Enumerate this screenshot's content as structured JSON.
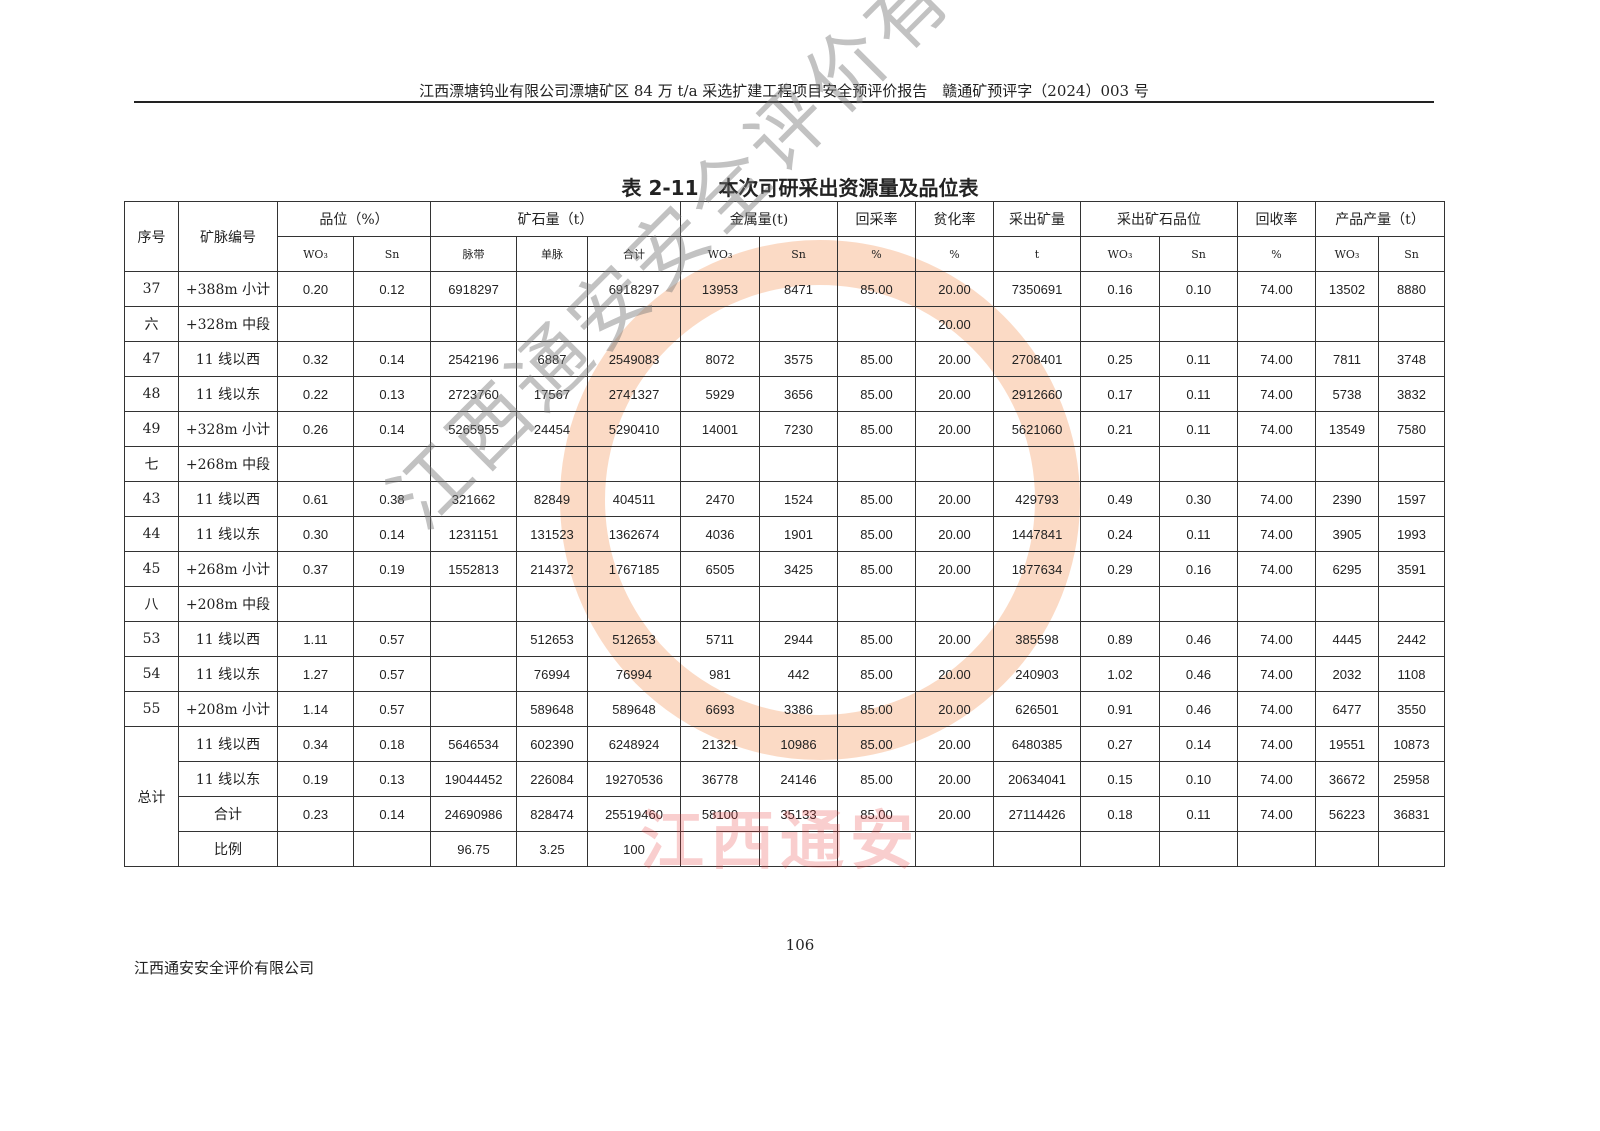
{
  "header": "江西漂塘钨业有限公司漂塘矿区 84 万 t/a 采选扩建工程项目安全预评价报告　赣通矿预评字（2024）003 号",
  "title": "表 2-11　本次可研采出资源量及品位表",
  "table": {
    "head1": [
      "序号",
      "矿脉编号",
      "品位（%）",
      "矿石量（t）",
      "金属量(t)",
      "回采率",
      "贫化率",
      "采出矿量",
      "采出矿石品位",
      "回收率",
      "产品产量（t）"
    ],
    "head2": [
      "WO₃",
      "Sn",
      "脉带",
      "单脉",
      "合计",
      "WO₃",
      "Sn",
      "%",
      "%",
      "t",
      "WO₃",
      "Sn",
      "%",
      "WO₃",
      "Sn"
    ],
    "rows": [
      [
        "37",
        "+388m 小计",
        "0.20",
        "0.12",
        "6918297",
        "",
        "6918297",
        "13953",
        "8471",
        "85.00",
        "20.00",
        "7350691",
        "0.16",
        "0.10",
        "74.00",
        "13502",
        "8880"
      ],
      [
        "六",
        "+328m 中段",
        "",
        "",
        "",
        "",
        "",
        "",
        "",
        "",
        "20.00",
        "",
        "",
        "",
        "",
        "",
        ""
      ],
      [
        "47",
        "11 线以西",
        "0.32",
        "0.14",
        "2542196",
        "6887",
        "2549083",
        "8072",
        "3575",
        "85.00",
        "20.00",
        "2708401",
        "0.25",
        "0.11",
        "74.00",
        "7811",
        "3748"
      ],
      [
        "48",
        "11 线以东",
        "0.22",
        "0.13",
        "2723760",
        "17567",
        "2741327",
        "5929",
        "3656",
        "85.00",
        "20.00",
        "2912660",
        "0.17",
        "0.11",
        "74.00",
        "5738",
        "3832"
      ],
      [
        "49",
        "+328m 小计",
        "0.26",
        "0.14",
        "5265955",
        "24454",
        "5290410",
        "14001",
        "7230",
        "85.00",
        "20.00",
        "5621060",
        "0.21",
        "0.11",
        "74.00",
        "13549",
        "7580"
      ],
      [
        "七",
        "+268m 中段",
        "",
        "",
        "",
        "",
        "",
        "",
        "",
        "",
        "",
        "",
        "",
        "",
        "",
        "",
        ""
      ],
      [
        "43",
        "11 线以西",
        "0.61",
        "0.38",
        "321662",
        "82849",
        "404511",
        "2470",
        "1524",
        "85.00",
        "20.00",
        "429793",
        "0.49",
        "0.30",
        "74.00",
        "2390",
        "1597"
      ],
      [
        "44",
        "11 线以东",
        "0.30",
        "0.14",
        "1231151",
        "131523",
        "1362674",
        "4036",
        "1901",
        "85.00",
        "20.00",
        "1447841",
        "0.24",
        "0.11",
        "74.00",
        "3905",
        "1993"
      ],
      [
        "45",
        "+268m 小计",
        "0.37",
        "0.19",
        "1552813",
        "214372",
        "1767185",
        "6505",
        "3425",
        "85.00",
        "20.00",
        "1877634",
        "0.29",
        "0.16",
        "74.00",
        "6295",
        "3591"
      ],
      [
        "八",
        "+208m 中段",
        "",
        "",
        "",
        "",
        "",
        "",
        "",
        "",
        "",
        "",
        "",
        "",
        "",
        "",
        ""
      ],
      [
        "53",
        "11 线以西",
        "1.11",
        "0.57",
        "",
        "512653",
        "512653",
        "5711",
        "2944",
        "85.00",
        "20.00",
        "385598",
        "0.89",
        "0.46",
        "74.00",
        "4445",
        "2442"
      ],
      [
        "54",
        "11 线以东",
        "1.27",
        "0.57",
        "",
        "76994",
        "76994",
        "981",
        "442",
        "85.00",
        "20.00",
        "240903",
        "1.02",
        "0.46",
        "74.00",
        "2032",
        "1108"
      ],
      [
        "55",
        "+208m 小计",
        "1.14",
        "0.57",
        "",
        "589648",
        "589648",
        "6693",
        "3386",
        "85.00",
        "20.00",
        "626501",
        "0.91",
        "0.46",
        "74.00",
        "6477",
        "3550"
      ]
    ],
    "total_label": "总计",
    "total_rows": [
      [
        "11 线以西",
        "0.34",
        "0.18",
        "5646534",
        "602390",
        "6248924",
        "21321",
        "10986",
        "85.00",
        "20.00",
        "6480385",
        "0.27",
        "0.14",
        "74.00",
        "19551",
        "10873"
      ],
      [
        "11 线以东",
        "0.19",
        "0.13",
        "19044452",
        "226084",
        "19270536",
        "36778",
        "24146",
        "85.00",
        "20.00",
        "20634041",
        "0.15",
        "0.10",
        "74.00",
        "36672",
        "25958"
      ],
      [
        "合计",
        "0.23",
        "0.14",
        "24690986",
        "828474",
        "25519460",
        "58100",
        "35133",
        "85.00",
        "20.00",
        "27114426",
        "0.18",
        "0.11",
        "74.00",
        "56223",
        "36831"
      ],
      [
        "比例",
        "",
        "",
        "96.75",
        "3.25",
        "100",
        "",
        "",
        "",
        "",
        "",
        "",
        "",
        "",
        "",
        ""
      ]
    ]
  },
  "watermark": {
    "text": "江西通安安全评价有限公司",
    "red_text": "江西通安"
  },
  "page_number": "106",
  "footer": "江西通安安全评价有限公司"
}
